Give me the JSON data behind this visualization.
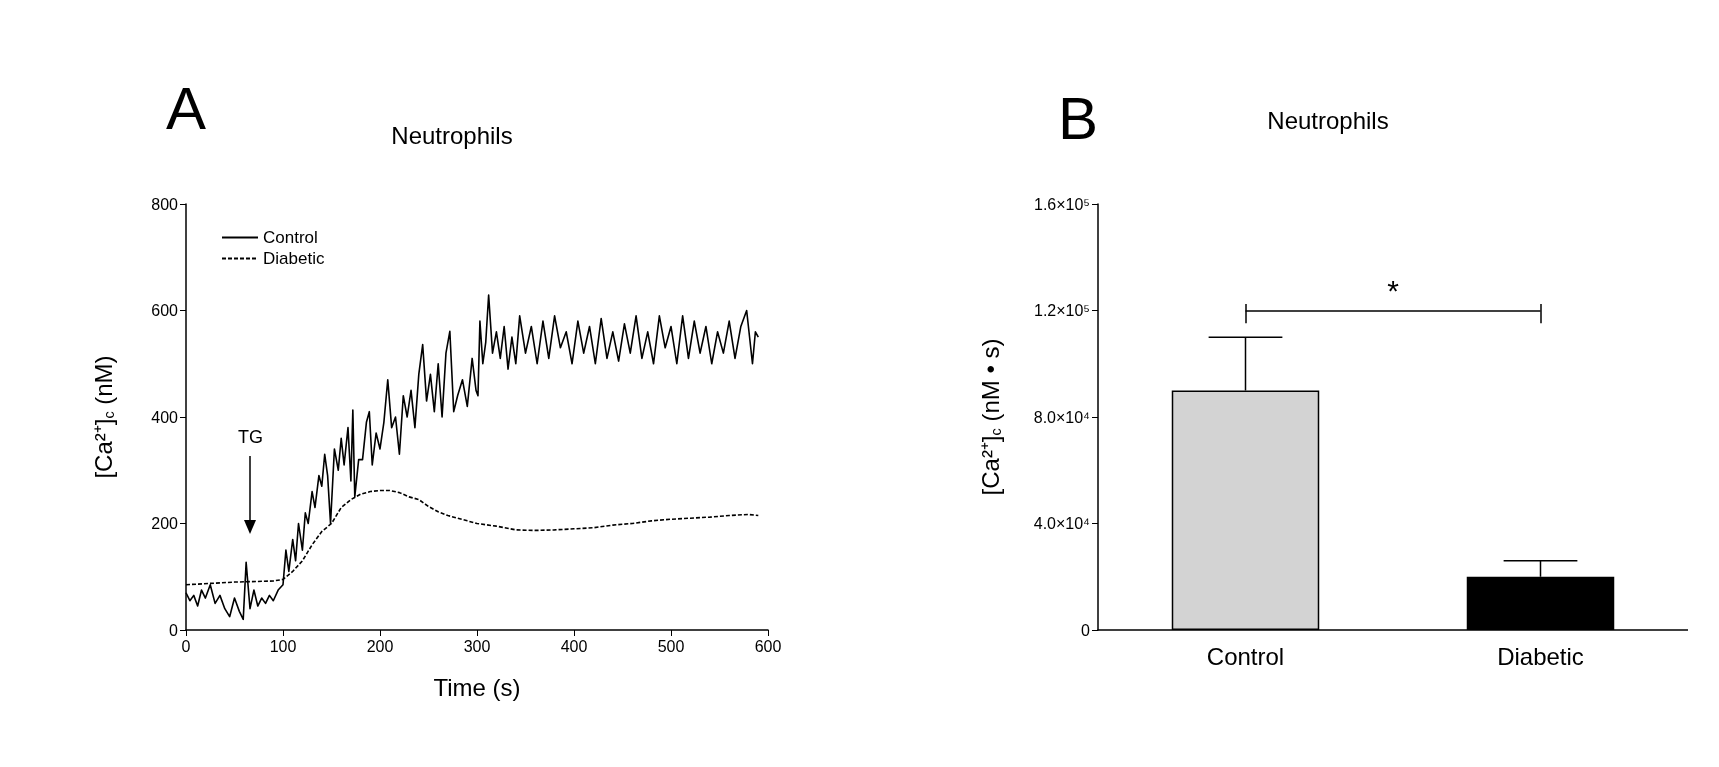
{
  "chart_data": [
    {
      "type": "line",
      "title": "Neutrophils",
      "xlabel": "Time (s)",
      "ylabel": "[Ca²⁺]$_{c}$ (nM)",
      "annotations": [
        "A",
        "TG"
      ],
      "xlim": [
        0,
        600
      ],
      "xticks": [
        0,
        100,
        200,
        300,
        400,
        500,
        600
      ],
      "ylim": [
        0,
        800
      ],
      "yticks": [
        0,
        200,
        400,
        600,
        800
      ],
      "grid": false,
      "legend": "top left",
      "marker": "none",
      "series": [
        {
          "name": "Control",
          "color": "#000000",
          "line_style": "solid",
          "x": [
            0,
            4,
            8,
            12,
            16,
            20,
            25,
            30,
            35,
            40,
            45,
            50,
            55,
            59,
            62,
            66,
            70,
            74,
            78,
            82,
            86,
            90,
            95,
            100,
            103,
            106,
            110,
            113,
            116,
            120,
            123,
            126,
            130,
            133,
            137,
            140,
            143,
            146,
            149,
            153,
            157,
            160,
            163,
            167,
            170,
            172,
            174,
            178,
            182,
            186,
            189,
            192,
            196,
            200,
            204,
            208,
            212,
            216,
            220,
            224,
            228,
            232,
            236,
            240,
            244,
            248,
            252,
            256,
            260,
            264,
            268,
            272,
            276,
            280,
            285,
            290,
            295,
            299,
            301,
            303,
            306,
            309,
            312,
            316,
            320,
            324,
            328,
            332,
            336,
            340,
            344,
            350,
            356,
            362,
            368,
            374,
            380,
            386,
            392,
            398,
            404,
            410,
            416,
            422,
            428,
            434,
            440,
            446,
            452,
            458,
            464,
            470,
            476,
            482,
            488,
            494,
            500,
            506,
            512,
            518,
            524,
            530,
            536,
            542,
            548,
            554,
            560,
            566,
            572,
            578,
            584,
            587,
            590
          ],
          "values": [
            70,
            55,
            65,
            45,
            75,
            60,
            85,
            50,
            65,
            40,
            25,
            60,
            35,
            20,
            127,
            40,
            75,
            45,
            60,
            50,
            65,
            55,
            75,
            85,
            150,
            110,
            170,
            130,
            200,
            150,
            220,
            200,
            260,
            230,
            290,
            270,
            330,
            290,
            200,
            340,
            300,
            360,
            310,
            380,
            280,
            413,
            250,
            320,
            320,
            390,
            410,
            310,
            370,
            340,
            390,
            470,
            380,
            400,
            330,
            440,
            400,
            450,
            380,
            480,
            536,
            430,
            480,
            410,
            500,
            400,
            520,
            561,
            410,
            440,
            470,
            420,
            510,
            450,
            440,
            580,
            500,
            540,
            629,
            520,
            560,
            510,
            570,
            490,
            550,
            500,
            590,
            520,
            570,
            500,
            580,
            510,
            590,
            530,
            560,
            500,
            580,
            520,
            570,
            500,
            585,
            510,
            560,
            505,
            575,
            520,
            590,
            510,
            560,
            500,
            590,
            530,
            570,
            500,
            590,
            510,
            580,
            520,
            570,
            500,
            560,
            520,
            580,
            510,
            570,
            600,
            500,
            560,
            550
          ]
        },
        {
          "name": "Diabetic",
          "color": "#000000",
          "line_style": "dashed",
          "x": [
            0,
            50,
            90,
            100,
            110,
            120,
            130,
            140,
            150,
            160,
            170,
            180,
            190,
            200,
            210,
            220,
            230,
            240,
            250,
            260,
            270,
            280,
            290,
            300,
            320,
            340,
            360,
            380,
            400,
            420,
            440,
            460,
            480,
            500,
            520,
            540,
            560,
            580,
            590
          ],
          "values": [
            85,
            90,
            92,
            95,
            110,
            130,
            160,
            185,
            200,
            230,
            245,
            255,
            260,
            262,
            262,
            258,
            250,
            245,
            232,
            222,
            215,
            210,
            205,
            200,
            195,
            188,
            187,
            188,
            190,
            192,
            197,
            200,
            205,
            208,
            210,
            212,
            215,
            217,
            215
          ]
        }
      ]
    },
    {
      "type": "bar",
      "title": "Neutrophils",
      "ylabel": "[Ca²⁺]$_{c}$ (nM • s)",
      "annotations": [
        "B",
        "*"
      ],
      "categories": [
        "Control",
        "Diabetic"
      ],
      "values": [
        90000,
        20000
      ],
      "colors": [
        "#d3d3d3",
        "#000000"
      ],
      "errors": [
        [
          90000,
          110000
        ],
        [
          20000,
          26000
        ]
      ],
      "ylim": [
        0,
        160000
      ],
      "yticks": [
        {
          "value": 0,
          "label": "0"
        },
        {
          "value": 40000,
          "label": "4.0×10⁴"
        },
        {
          "value": 80000,
          "label": "8.0×10⁴"
        },
        {
          "value": 120000,
          "label": "1.2×10⁵"
        },
        {
          "value": 160000,
          "label": "1.6×10⁵"
        }
      ],
      "grid": false
    }
  ]
}
